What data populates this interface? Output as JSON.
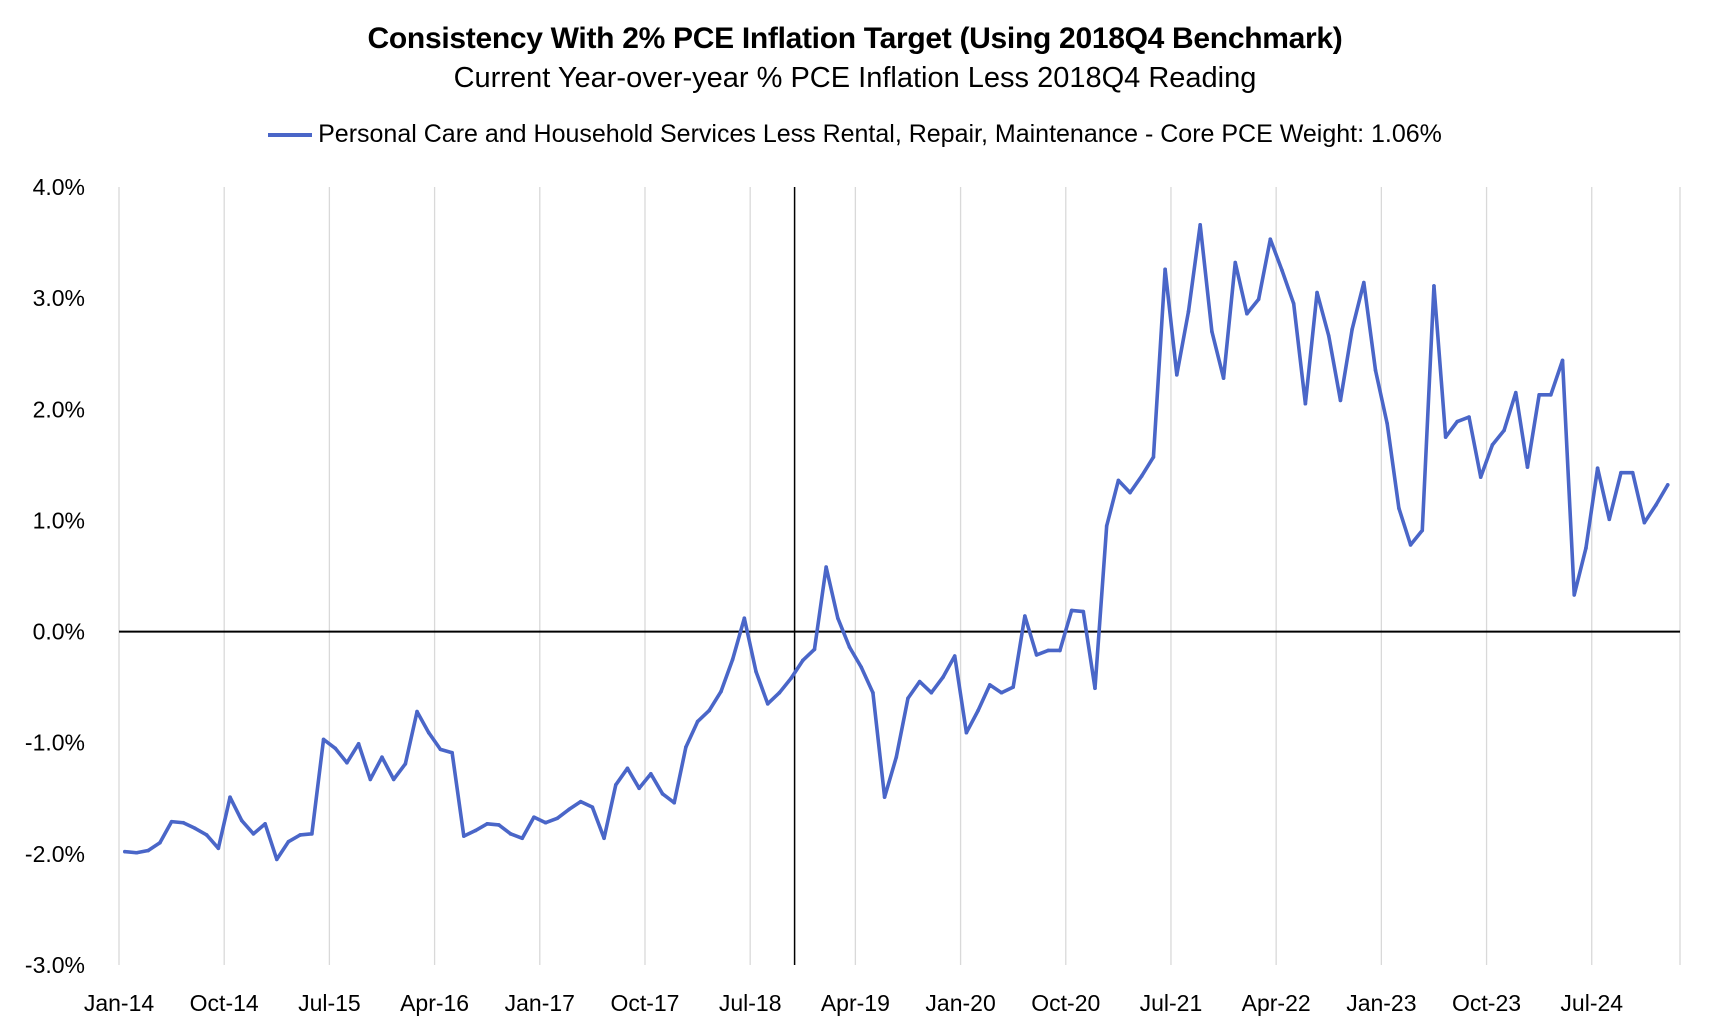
{
  "chart_data": {
    "type": "line",
    "title": "Consistency With 2% PCE Inflation Target (Using 2018Q4 Benchmark)",
    "subtitle": "Current Year-over-year % PCE Inflation Less 2018Q4 Reading",
    "xlabel": "",
    "ylabel": "",
    "ylim": [
      -3.0,
      4.0
    ],
    "y_ticks": [
      "4.0%",
      "3.0%",
      "2.0%",
      "1.0%",
      "0.0%",
      "-1.0%",
      "-2.0%",
      "-3.0%"
    ],
    "x_ticks": [
      "Jan-14",
      "Oct-14",
      "Jul-15",
      "Apr-16",
      "Jan-17",
      "Oct-17",
      "Jul-18",
      "Apr-19",
      "Jan-20",
      "Oct-20",
      "Jul-21",
      "Apr-22",
      "Jan-23",
      "Oct-23",
      "Jul-24"
    ],
    "x_start": "Jan-14",
    "x_end": "Nov-24",
    "benchmark_marker": "Oct-18",
    "grid": "vertical",
    "legend_position": "top-center",
    "series": [
      {
        "name": "Personal Care and Household Services Less Rental, Repair, Maintenance  - Core PCE Weight: 1.06%",
        "color": "#4a66c8",
        "values": [
          -1.98,
          -1.99,
          -1.97,
          -1.9,
          -1.71,
          -1.72,
          -1.77,
          -1.83,
          -1.95,
          -1.49,
          -1.7,
          -1.82,
          -1.73,
          -2.05,
          -1.89,
          -1.83,
          -1.82,
          -0.97,
          -1.05,
          -1.18,
          -1.01,
          -1.33,
          -1.13,
          -1.33,
          -1.19,
          -0.72,
          -0.91,
          -1.06,
          -1.09,
          -1.84,
          -1.79,
          -1.73,
          -1.74,
          -1.82,
          -1.86,
          -1.67,
          -1.72,
          -1.68,
          -1.6,
          -1.53,
          -1.58,
          -1.86,
          -1.38,
          -1.23,
          -1.41,
          -1.28,
          -1.46,
          -1.54,
          -1.04,
          -0.81,
          -0.71,
          -0.54,
          -0.25,
          0.12,
          -0.36,
          -0.65,
          -0.55,
          -0.42,
          -0.26,
          -0.16,
          0.58,
          0.12,
          -0.14,
          -0.32,
          -0.55,
          -1.49,
          -1.13,
          -0.6,
          -0.45,
          -0.55,
          -0.41,
          -0.22,
          -0.91,
          -0.71,
          -0.48,
          -0.55,
          -0.5,
          0.14,
          -0.21,
          -0.17,
          -0.17,
          0.19,
          0.18,
          -0.51,
          0.95,
          1.36,
          1.25,
          1.4,
          1.57,
          3.26,
          2.31,
          2.88,
          3.66,
          2.7,
          2.28,
          3.32,
          2.86,
          2.99,
          3.53,
          3.25,
          2.95,
          2.05,
          3.05,
          2.66,
          2.08,
          2.72,
          3.14,
          2.35,
          1.87,
          1.11,
          0.78,
          0.91,
          3.11,
          1.75,
          1.89,
          1.93,
          1.39,
          1.68,
          1.81,
          2.15,
          1.48,
          2.13,
          2.13,
          2.44,
          0.33,
          0.75,
          1.47,
          1.01,
          1.43,
          1.43,
          0.98,
          1.14,
          1.32
        ]
      }
    ]
  }
}
